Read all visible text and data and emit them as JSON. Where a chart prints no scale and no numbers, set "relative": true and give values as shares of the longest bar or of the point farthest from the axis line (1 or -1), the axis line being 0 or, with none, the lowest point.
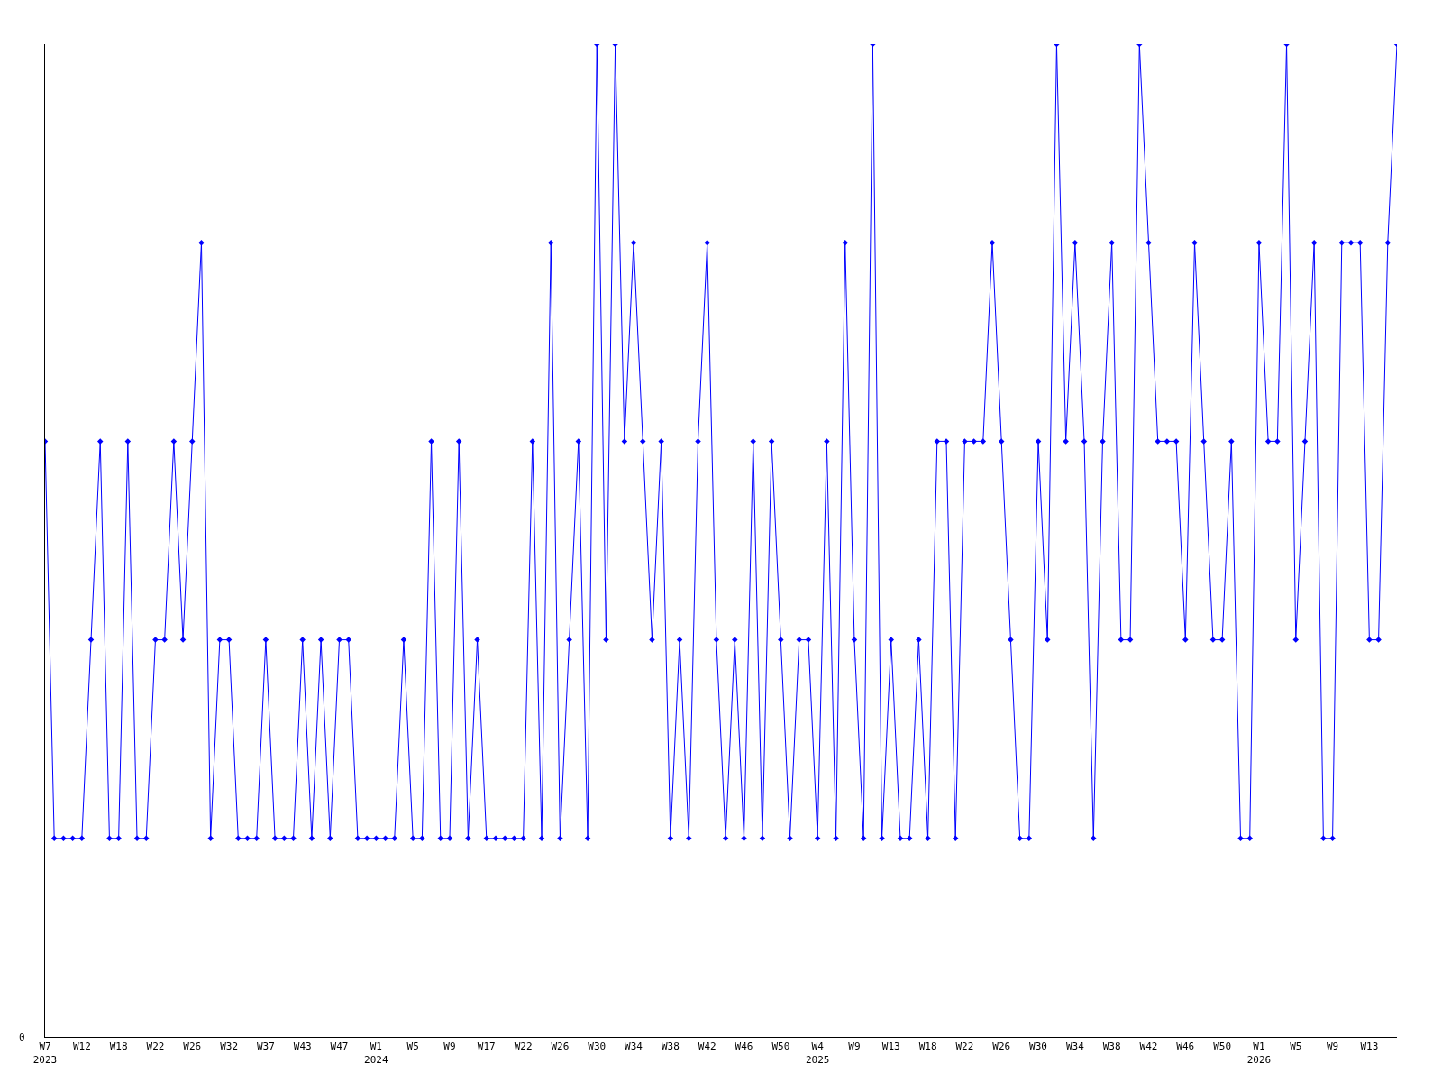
{
  "chart_data": {
    "type": "line",
    "relative": true,
    "annotations": [
      "0"
    ],
    "color": "#0000ff",
    "marker": "diamond",
    "categories": [
      "W7\n2023",
      null,
      null,
      null,
      "W12",
      null,
      null,
      null,
      "W18",
      null,
      null,
      null,
      "W22",
      null,
      null,
      null,
      "W26",
      null,
      null,
      null,
      "W32",
      null,
      null,
      null,
      "W37",
      null,
      null,
      null,
      "W43",
      null,
      null,
      null,
      "W47",
      null,
      null,
      null,
      "W1\n2024",
      null,
      null,
      null,
      "W5",
      null,
      null,
      null,
      "W9",
      null,
      null,
      null,
      "W17",
      null,
      null,
      null,
      "W22",
      null,
      null,
      null,
      "W26",
      null,
      null,
      null,
      "W30",
      null,
      null,
      null,
      "W34",
      null,
      null,
      null,
      "W38",
      null,
      null,
      null,
      "W42",
      null,
      null,
      null,
      "W46",
      null,
      null,
      null,
      "W50",
      null,
      null,
      null,
      "W4\n2025",
      null,
      null,
      null,
      "W9",
      null,
      null,
      null,
      "W13",
      null,
      null,
      null,
      "W18",
      null,
      null,
      null,
      "W22",
      null,
      null,
      null,
      "W26",
      null,
      null,
      null,
      "W30",
      null,
      null,
      null,
      "W34",
      null,
      null,
      null,
      "W38",
      null,
      null,
      null,
      "W42",
      null,
      null,
      null,
      "W46",
      null,
      null,
      null,
      "W50",
      null,
      null,
      null,
      "W1\n2026",
      null,
      null,
      null,
      "W5",
      null,
      null,
      null,
      "W9",
      null,
      null,
      null,
      "W13",
      null,
      null,
      null
    ],
    "values": [
      0.6,
      0.2,
      0.2,
      0.2,
      0.2,
      0.4,
      0.6,
      0.2,
      0.2,
      0.6,
      0.2,
      0.2,
      0.4,
      0.4,
      0.6,
      0.4,
      0.6,
      0.8,
      0.2,
      0.4,
      0.4,
      0.2,
      0.2,
      0.2,
      0.4,
      0.2,
      0.2,
      0.2,
      0.4,
      0.2,
      0.4,
      0.2,
      0.4,
      0.4,
      0.2,
      0.2,
      0.2,
      0.2,
      0.2,
      0.4,
      0.2,
      0.2,
      0.6,
      0.2,
      0.2,
      0.6,
      0.2,
      0.4,
      0.2,
      0.2,
      0.2,
      0.2,
      0.2,
      0.6,
      0.2,
      0.8,
      0.2,
      0.4,
      0.6,
      0.2,
      1,
      0.4,
      1,
      0.6,
      0.8,
      0.6,
      0.4,
      0.6,
      0.2,
      0.4,
      0.2,
      0.6,
      0.8,
      0.4,
      0.2,
      0.4,
      0.2,
      0.6,
      0.2,
      0.6,
      0.4,
      0.2,
      0.4,
      0.4,
      0.2,
      0.6,
      0.2,
      0.8,
      0.4,
      0.2,
      1,
      0.2,
      0.4,
      0.2,
      0.2,
      0.4,
      0.2,
      0.6,
      0.6,
      0.2,
      0.6,
      0.6,
      0.6,
      0.8,
      0.6,
      0.4,
      0.2,
      0.2,
      0.6,
      0.4,
      1,
      0.6,
      0.8,
      0.6,
      0.2,
      0.6,
      0.8,
      0.4,
      0.4,
      1,
      0.8,
      0.6,
      0.6,
      0.6,
      0.4,
      0.8,
      0.6,
      0.4,
      0.4,
      0.6,
      0.2,
      0.2,
      0.8,
      0.6,
      0.6,
      1,
      0.4,
      0.6,
      0.8,
      0.2,
      0.2,
      0.8,
      0.8,
      0.8,
      0.4,
      0.4,
      0.8,
      1
    ]
  }
}
